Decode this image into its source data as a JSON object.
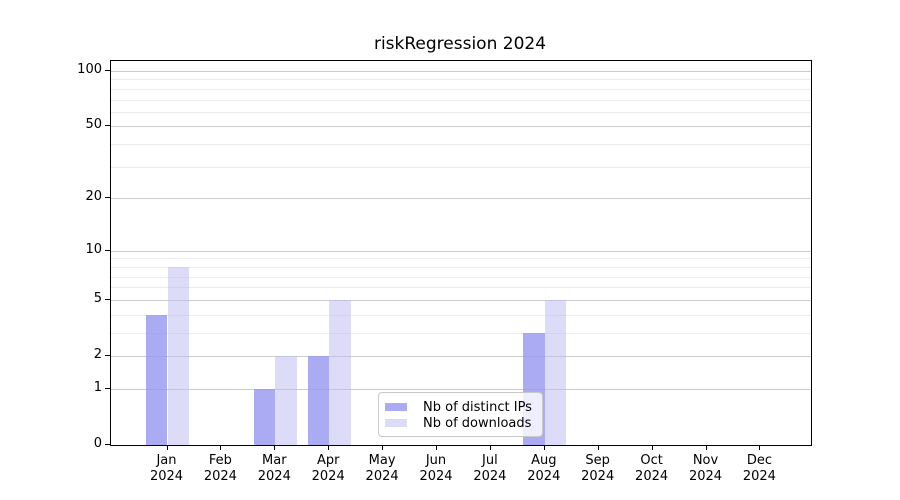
{
  "title": "riskRegression 2024",
  "chart_data": {
    "type": "bar",
    "title": "riskRegression 2024",
    "categories": [
      "Jan",
      "Feb",
      "Mar",
      "Apr",
      "May",
      "Jun",
      "Jul",
      "Aug",
      "Sep",
      "Oct",
      "Nov",
      "Dec"
    ],
    "year_label": "2024",
    "series": [
      {
        "name": "Nb of distinct IPs",
        "color": "rgba(150,150,240,0.8)",
        "legend_color": "#ababf3",
        "values": [
          4,
          0,
          1,
          2,
          0,
          0,
          0,
          3,
          0,
          0,
          0,
          0
        ]
      },
      {
        "name": "Nb of downloads",
        "color": "rgba(185,185,242,0.5)",
        "legend_color": "#dcdcf9",
        "values": [
          8,
          0,
          2,
          5,
          0,
          0,
          0,
          5,
          0,
          0,
          0,
          0
        ]
      }
    ],
    "y_scale": "log1p",
    "y_ticks": [
      0,
      1,
      2,
      5,
      10,
      20,
      50,
      100
    ],
    "major_gridlines": [
      1,
      2,
      5,
      10,
      20,
      50,
      100
    ],
    "minor_gridlines": [
      3,
      4,
      6,
      7,
      8,
      9,
      30,
      40,
      60,
      70,
      80,
      90
    ],
    "ylim": [
      0,
      110
    ],
    "xlabel": "",
    "ylabel": "",
    "grid": true,
    "legend_position": "lower center"
  },
  "legend": {
    "items": [
      {
        "label": "Nb of distinct IPs"
      },
      {
        "label": "Nb of downloads"
      }
    ]
  },
  "colors": {
    "major_grid": "#cccccc",
    "minor_grid": "#ececec",
    "axis": "#000000",
    "series1": "#ababf3",
    "series2": "#dcdcf9"
  }
}
